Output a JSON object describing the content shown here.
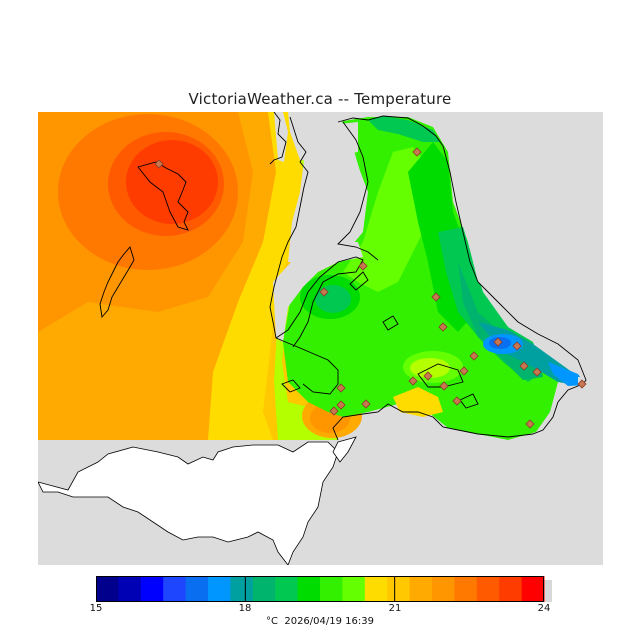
{
  "title": "VictoriaWeather.ca -- Temperature",
  "legend": {
    "unit": "°C",
    "timestamp": "2026/04/19 16:39",
    "ticks": [
      "15",
      "18",
      "21",
      "24"
    ],
    "range": [
      15,
      24
    ],
    "colors": [
      "#00008c",
      "#0000b4",
      "#0000ff",
      "#1e46ff",
      "#0a6ef0",
      "#0096ff",
      "#00a0a0",
      "#00b46e",
      "#00c850",
      "#00dc00",
      "#32f000",
      "#64ff00",
      "#b4ff00",
      "#ffdc00",
      "#ffc800",
      "#ffaa00",
      "#ff9600",
      "#ff7800",
      "#ff5a00",
      "#ff3c00",
      "#ff0000"
    ]
  },
  "map": {
    "background_color": "#dcdcdc",
    "land_color": "#ffffff",
    "station_marker": "diamond-marker"
  }
}
